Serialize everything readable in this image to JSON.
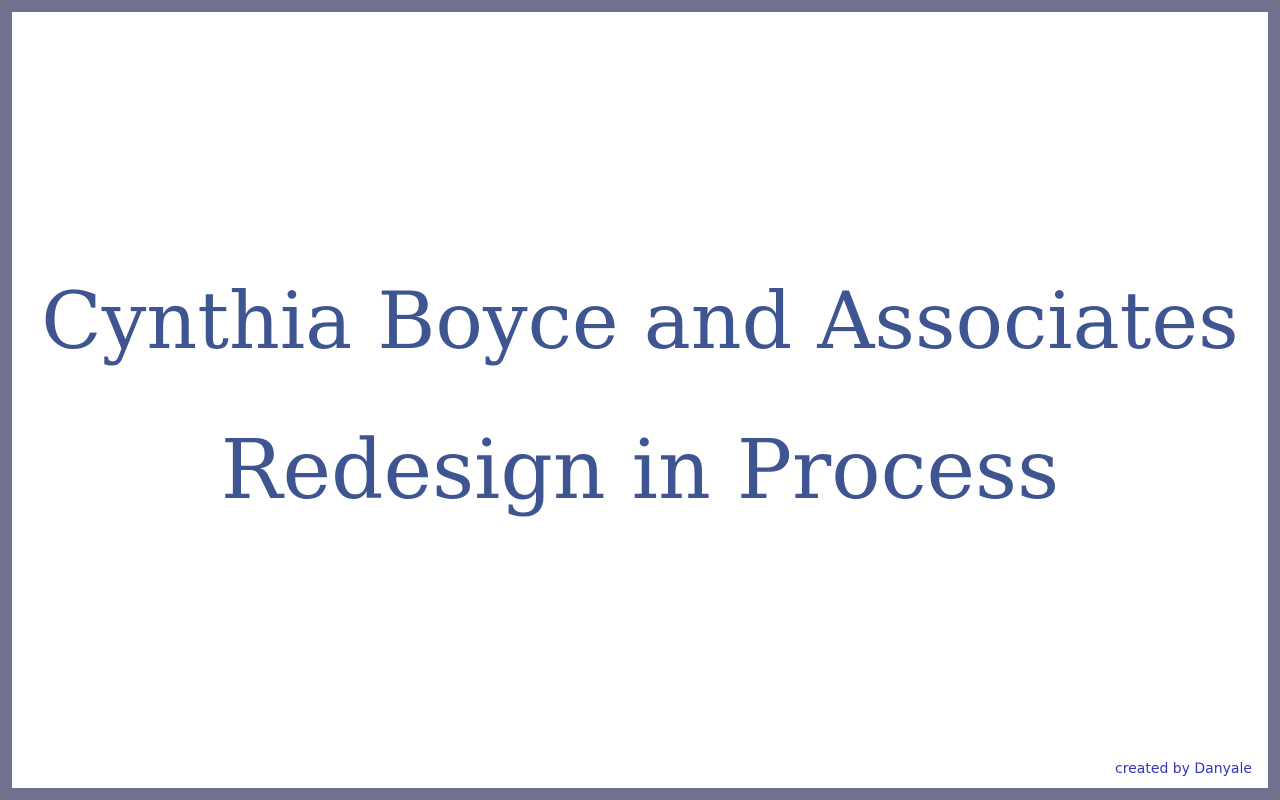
{
  "page": {
    "title": "Cynthia Boyce and Associates",
    "subtitle": "Redesign in Process",
    "credit": "created by Danyale"
  },
  "colors": {
    "border": "#72728f",
    "background": "#ffffff",
    "heading": "#3f5591",
    "credit_link": "#3535b8"
  }
}
